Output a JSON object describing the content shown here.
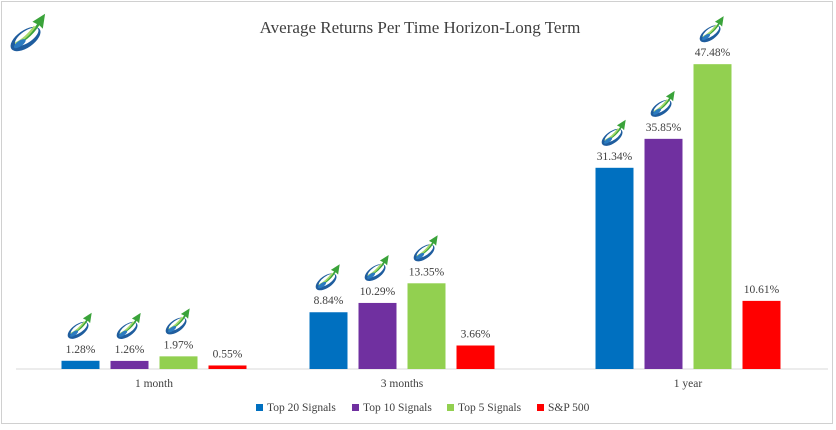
{
  "chart_data": {
    "type": "bar",
    "title": "Average Returns Per Time Horizon-Long Term",
    "categories": [
      "1 month",
      "3 months",
      "1 year"
    ],
    "series": [
      {
        "name": "Top 20 Signals",
        "color": "#0070c0",
        "values": [
          1.28,
          8.84,
          31.34
        ],
        "labels": [
          "1.28%",
          "8.84%",
          "31.34%"
        ]
      },
      {
        "name": "Top 10 Signals",
        "color": "#7030a0",
        "values": [
          1.26,
          10.29,
          35.85
        ],
        "labels": [
          "1.26%",
          "10.29%",
          "35.85%"
        ]
      },
      {
        "name": "Top 5 Signals",
        "color": "#92d050",
        "values": [
          1.97,
          13.35,
          47.48
        ],
        "labels": [
          "1.97%",
          "13.35%",
          "47.48%"
        ]
      },
      {
        "name": "S&P 500",
        "color": "#ff0000",
        "values": [
          0.55,
          3.66,
          10.61
        ],
        "labels": [
          "0.55%",
          "3.66%",
          "10.61%"
        ]
      }
    ],
    "ylim": [
      0,
      50
    ],
    "grid": false,
    "legend": "bottom",
    "logo_icon": "growth-arrow-logo-icon",
    "logo_on_series": [
      "Top 20 Signals",
      "Top 10 Signals",
      "Top 5 Signals"
    ]
  }
}
